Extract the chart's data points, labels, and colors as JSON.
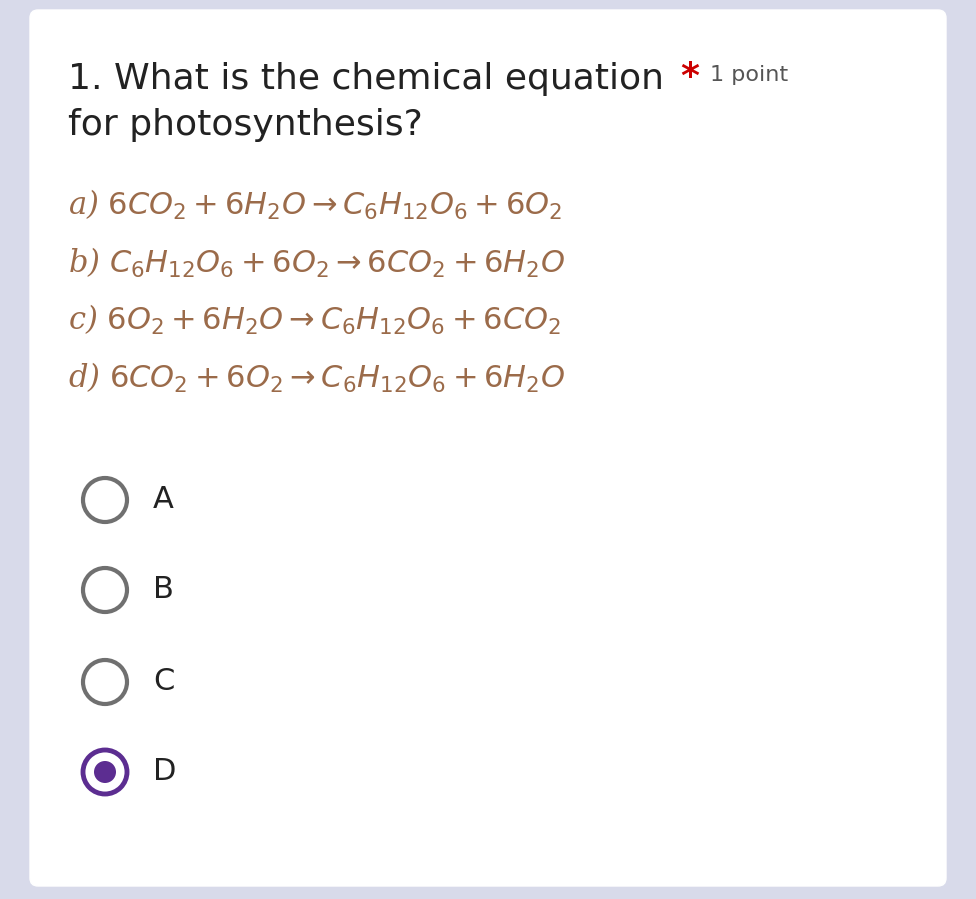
{
  "bg_outer": "#d8daea",
  "bg_inner": "#ffffff",
  "title_line1": "1. What is the chemical equation",
  "title_line2": "for photosynthesis?",
  "star_text": "*",
  "point_text": "1 point",
  "equation_color": "#9b6b4a",
  "label_color": "#222222",
  "star_color": "#cc0000",
  "point_color": "#555555",
  "options_math": [
    "a) $6CO_{2} + 6H_{2}O \\rightarrow C_{6}H_{12}O_{6} + 6O_{2}$",
    "b) $C_{6}H_{12}O_{6} + 6O_{2} \\rightarrow 6CO_{2} + 6H_{2}O$",
    "c) $6O_{2} + 6H_{2}O \\rightarrow C_{6}H_{12}O_{6} + 6CO_{2}$",
    "d) $6CO_{2} + 6O_{2} \\rightarrow C_{6}H_{12}O_{6} + 6H_{2}O$"
  ],
  "choices": [
    "A",
    "B",
    "C",
    "D"
  ],
  "selected_choice": 3,
  "circle_empty_edge": "#707070",
  "circle_selected_color": "#5c2d91",
  "title_fontsize": 26,
  "point_fontsize": 16,
  "eq_fontsize": 22,
  "choice_fontsize": 22
}
